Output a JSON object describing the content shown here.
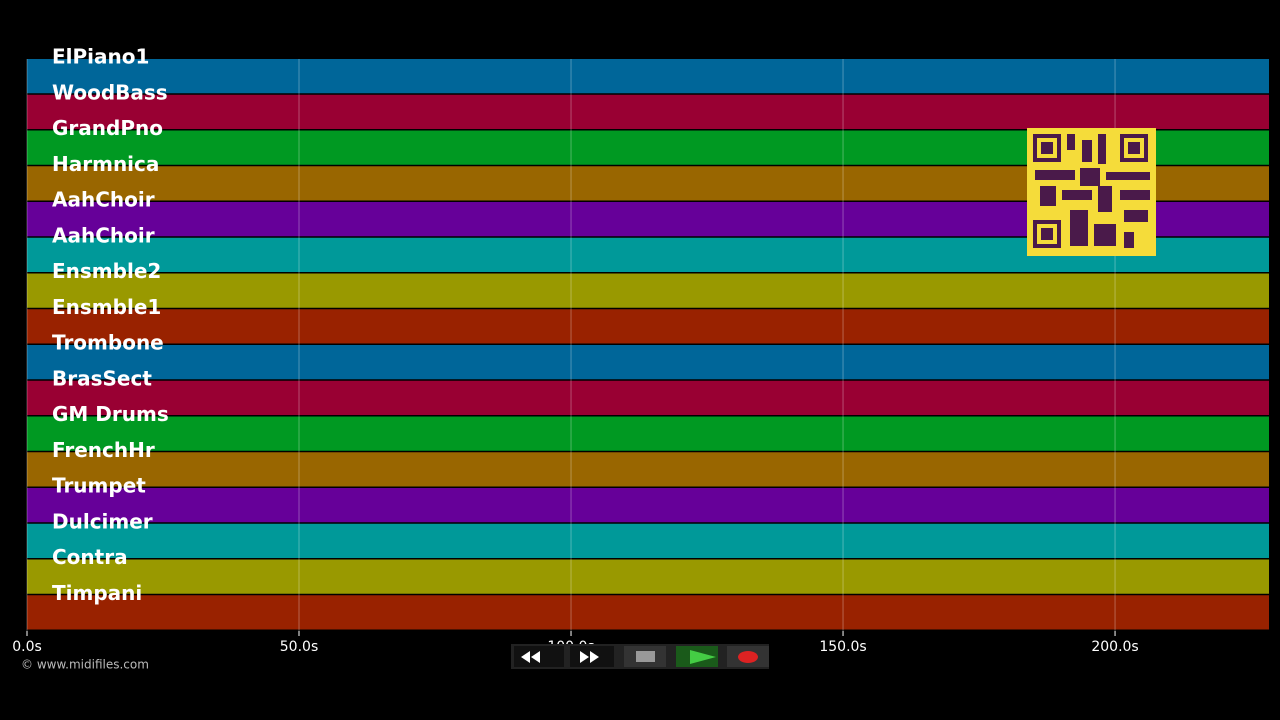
{
  "tracks": [
    {
      "name": "ElPiano1",
      "color": "#006699"
    },
    {
      "name": "WoodBass",
      "color": "#990033"
    },
    {
      "name": "GrandPno",
      "color": "#009922"
    },
    {
      "name": "Harmnica",
      "color": "#996600"
    },
    {
      "name": "AahChoir",
      "color": "#660099"
    },
    {
      "name": "AahChoir",
      "color": "#009999"
    },
    {
      "name": "Ensmble2",
      "color": "#999900"
    },
    {
      "name": "Ensmble1",
      "color": "#992200"
    },
    {
      "name": "Trombone",
      "color": "#006699"
    },
    {
      "name": "BrasSect",
      "color": "#990033"
    },
    {
      "name": "GM Drums",
      "color": "#009922"
    },
    {
      "name": "FrenchHr",
      "color": "#996600"
    },
    {
      "name": "Trumpet",
      "color": "#660099"
    },
    {
      "name": "Dulcimer",
      "color": "#009999"
    },
    {
      "name": "Contra",
      "color": "#999900"
    },
    {
      "name": "Timpani",
      "color": "#992200"
    }
  ],
  "time_axis": {
    "xlim": [
      0,
      228.3
    ],
    "ticks": [
      {
        "value": 0,
        "label": "0.0s"
      },
      {
        "value": 50,
        "label": "50.0s"
      },
      {
        "value": 100,
        "label": "100.0s"
      },
      {
        "value": 150,
        "label": "150.0s"
      },
      {
        "value": 200,
        "label": "200.0s"
      }
    ]
  },
  "credit": "© www.midifiles.com"
}
